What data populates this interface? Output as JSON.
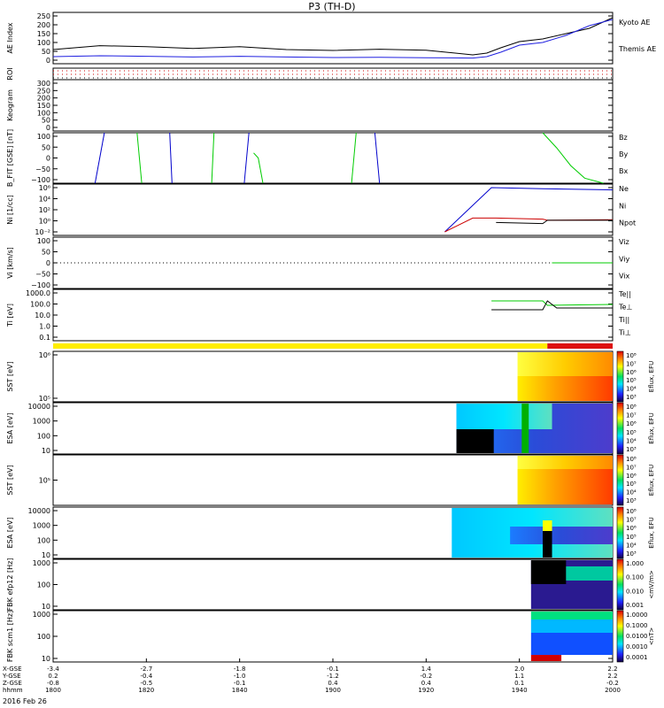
{
  "title": "P3 (TH-D)",
  "date_label": "2016 Feb 26",
  "colors": {
    "kyoto": "#1f1fe0",
    "themis": "#000000",
    "red": "#cc0000",
    "green": "#00cc00",
    "blue": "#0000cc",
    "yellow": "#ffee00",
    "bar_red": "#dd1111"
  },
  "time_axis": {
    "row_labels": [
      "X-GSE",
      "Y-GSE",
      "Z-GSE",
      "hhmm"
    ],
    "ticks": [
      {
        "hhmm": "1800",
        "x": "-3.4",
        "y": "0.2",
        "z": "-0.8"
      },
      {
        "hhmm": "1820",
        "x": "-2.7",
        "y": "-0.4",
        "z": "-0.5"
      },
      {
        "hhmm": "1840",
        "x": "-1.8",
        "y": "-1.0",
        "z": "-0.1"
      },
      {
        "hhmm": "1900",
        "x": "-0.1",
        "y": "-1.2",
        "z": "0.4"
      },
      {
        "hhmm": "1920",
        "x": "1.4",
        "y": "-0.2",
        "z": "0.4"
      },
      {
        "hhmm": "1940",
        "x": "2.0",
        "y": "1.1",
        "z": "0.1"
      },
      {
        "hhmm": "2000",
        "x": "2.2",
        "y": "2.2",
        "z": "-0.2"
      }
    ]
  },
  "panels": [
    {
      "id": "ae",
      "ylabel": "AE Index",
      "ticks": [
        "250",
        "200",
        "150",
        "100",
        "50",
        "0"
      ],
      "legend": [
        {
          "text": "Kyoto AE",
          "color": "#1f1fe0"
        },
        {
          "text": "Themis AE",
          "color": "#000000"
        }
      ]
    },
    {
      "id": "roi",
      "ylabel": "ROI",
      "ticks": [],
      "legend": []
    },
    {
      "id": "keogram",
      "ylabel": "Keogram",
      "ticks": [
        "300",
        "250",
        "200",
        "150",
        "100",
        "50",
        "0"
      ],
      "legend": []
    },
    {
      "id": "bfit",
      "ylabel": "B_FIT [GSE] [nT]",
      "ticks": [
        "100",
        "50",
        "0",
        "−50",
        "−100"
      ],
      "legend": [
        {
          "text": "Bz",
          "color": "#cc0000"
        },
        {
          "text": "By",
          "color": "#00cc00"
        },
        {
          "text": "Bx",
          "color": "#0000cc"
        }
      ]
    },
    {
      "id": "ni",
      "ylabel": "Ni  [1/cc]",
      "ticks": [
        "10⁶",
        "10⁴",
        "10²",
        "10⁰",
        "10⁻²"
      ],
      "legend": [
        {
          "text": "Ne",
          "color": "#cc0000"
        },
        {
          "text": "Ni",
          "color": "#000000"
        },
        {
          "text": "Npot",
          "color": "#0000cc"
        }
      ]
    },
    {
      "id": "vi",
      "ylabel": "Vi  [km/s]",
      "ticks": [
        "100",
        "50",
        "0",
        "−50",
        "−100"
      ],
      "legend": [
        {
          "text": "Viz",
          "color": "#cc0000"
        },
        {
          "text": "Viy",
          "color": "#00cc00"
        },
        {
          "text": "Vix",
          "color": "#0000cc"
        }
      ]
    },
    {
      "id": "ti",
      "ylabel": "Ti  [eV]",
      "ticks": [
        "1000.0",
        "100.0",
        "10.0",
        "1.0",
        "0.1"
      ],
      "legend": [
        {
          "text": "Te||",
          "color": "#000000"
        },
        {
          "text": "Te⊥",
          "color": "#cc0000"
        },
        {
          "text": "Ti||",
          "color": "#00cc00"
        },
        {
          "text": "Ti⊥",
          "color": "#0000cc"
        }
      ]
    },
    {
      "id": "sst_e",
      "ylabel": "SST  [eV]",
      "ticks": [
        "10⁶",
        "10⁵"
      ],
      "cbar": {
        "ticks": [
          "10⁸",
          "10⁷",
          "10⁶",
          "10⁵",
          "10⁴",
          "10³"
        ],
        "label": "Eflux, EFU"
      }
    },
    {
      "id": "esa_e",
      "ylabel": "ESA  [eV]",
      "ticks": [
        "10000",
        "1000",
        "100",
        "10"
      ],
      "cbar": {
        "ticks": [
          "10⁸",
          "10⁷",
          "10⁶",
          "10⁵",
          "10⁴",
          "10³"
        ],
        "label": "Eflux, EFU"
      }
    },
    {
      "id": "sst_i",
      "ylabel": "SST  [eV]",
      "ticks": [
        "10⁵"
      ],
      "cbar": {
        "ticks": [
          "10⁸",
          "10⁷",
          "10⁶",
          "10⁵",
          "10⁴",
          "10³"
        ],
        "label": "Eflux, EFU"
      }
    },
    {
      "id": "esa_i",
      "ylabel": "ESA  [eV]",
      "ticks": [
        "10000",
        "1000",
        "100",
        "10"
      ],
      "cbar": {
        "ticks": [
          "10⁸",
          "10⁷",
          "10⁶",
          "10⁵",
          "10⁴",
          "10³"
        ],
        "label": "Eflux, EFU"
      }
    },
    {
      "id": "fbk_e",
      "ylabel": "FBK  efp12 [Hz]",
      "ticks": [
        "1000",
        "100",
        "10"
      ],
      "cbar": {
        "ticks": [
          "1.000",
          "0.100",
          "0.010",
          "0.001"
        ],
        "label": "<mV/m>"
      }
    },
    {
      "id": "fbk_b",
      "ylabel": "FBK  scm1 [Hz]",
      "ticks": [
        "1000",
        "100",
        "10"
      ],
      "cbar": {
        "ticks": [
          "1.0000",
          "0.1000",
          "0.0100",
          "0.0010",
          "0.0001"
        ],
        "label": "<nT>"
      }
    }
  ],
  "chart_data": {
    "type": "line",
    "time_range_minutes_since_1800": [
      0,
      120
    ],
    "ae_index": {
      "ylim": [
        0,
        250
      ],
      "series": [
        {
          "name": "Themis AE",
          "t": [
            0,
            10,
            20,
            30,
            40,
            50,
            60,
            70,
            80,
            90,
            93,
            96,
            100,
            105,
            110,
            115,
            120
          ],
          "v": [
            60,
            82,
            76,
            66,
            76,
            60,
            55,
            62,
            56,
            30,
            40,
            70,
            105,
            120,
            150,
            180,
            240
          ]
        },
        {
          "name": "Kyoto AE",
          "t": [
            0,
            10,
            20,
            30,
            40,
            50,
            60,
            70,
            80,
            90,
            93,
            96,
            100,
            105,
            110,
            115,
            120
          ],
          "v": [
            20,
            25,
            22,
            18,
            22,
            18,
            15,
            16,
            14,
            12,
            20,
            45,
            85,
            100,
            140,
            195,
            230
          ]
        }
      ]
    },
    "b_fit": {
      "ylim": [
        -100,
        100
      ],
      "segments": [
        {
          "c": "Bx",
          "t": [
            9,
            11
          ],
          "v": [
            -100,
            100
          ]
        },
        {
          "c": "By",
          "t": [
            18,
            19
          ],
          "v": [
            100,
            -100
          ]
        },
        {
          "c": "Bx",
          "t": [
            25,
            25.5
          ],
          "v": [
            100,
            -100
          ]
        },
        {
          "c": "By",
          "t": [
            34,
            34.5
          ],
          "v": [
            -100,
            100
          ]
        },
        {
          "c": "Bx",
          "t": [
            41,
            42
          ],
          "v": [
            -100,
            100
          ]
        },
        {
          "c": "By",
          "t": [
            43,
            44,
            45
          ],
          "v": [
            20,
            0,
            -100
          ]
        },
        {
          "c": "By",
          "t": [
            64,
            65
          ],
          "v": [
            -100,
            100
          ]
        },
        {
          "c": "Bx",
          "t": [
            69,
            70
          ],
          "v": [
            100,
            -100
          ]
        },
        {
          "c": "By",
          "t": [
            105,
            108,
            111,
            114,
            118
          ],
          "v": [
            100,
            40,
            -30,
            -80,
            -100
          ]
        }
      ]
    },
    "density": {
      "ylim_log10": [
        -2,
        6
      ],
      "series": [
        {
          "name": "Npot",
          "t": [
            84,
            94,
            105,
            120
          ],
          "log10": [
            -2,
            6,
            5.8,
            5.6
          ]
        },
        {
          "name": "Ne",
          "t": [
            84,
            90,
            95,
            105,
            106,
            120
          ],
          "log10": [
            -2,
            0.5,
            0.5,
            0.3,
            0.1,
            0.2
          ]
        },
        {
          "name": "Ni",
          "t": [
            95,
            100,
            105,
            106,
            120
          ],
          "log10": [
            -0.3,
            -0.4,
            -0.5,
            0.1,
            0.1
          ]
        }
      ]
    },
    "velocity": {
      "ylim": [
        -150,
        150
      ],
      "series": [
        {
          "name": "Viz",
          "t": [
            107,
            120
          ],
          "v": [
            0,
            0
          ]
        },
        {
          "name": "Viy",
          "t": [
            107,
            120
          ],
          "v": [
            0,
            0
          ]
        }
      ]
    },
    "temperature": {
      "ylim_log10": [
        -1,
        4
      ],
      "series": [
        {
          "name": "Ti||",
          "t": [
            94,
            105,
            106,
            120
          ],
          "log10": [
            3.1,
            3.1,
            2.6,
            2.7
          ]
        },
        {
          "name": "Te||",
          "t": [
            94,
            105,
            106,
            108,
            120
          ],
          "log10": [
            2.1,
            2.1,
            3.1,
            2.3,
            2.3
          ]
        }
      ]
    },
    "mode_bar": [
      {
        "t0": 0,
        "t1": 106,
        "mode": "slow"
      },
      {
        "t0": 106,
        "t1": 120,
        "mode": "fast"
      }
    ]
  }
}
